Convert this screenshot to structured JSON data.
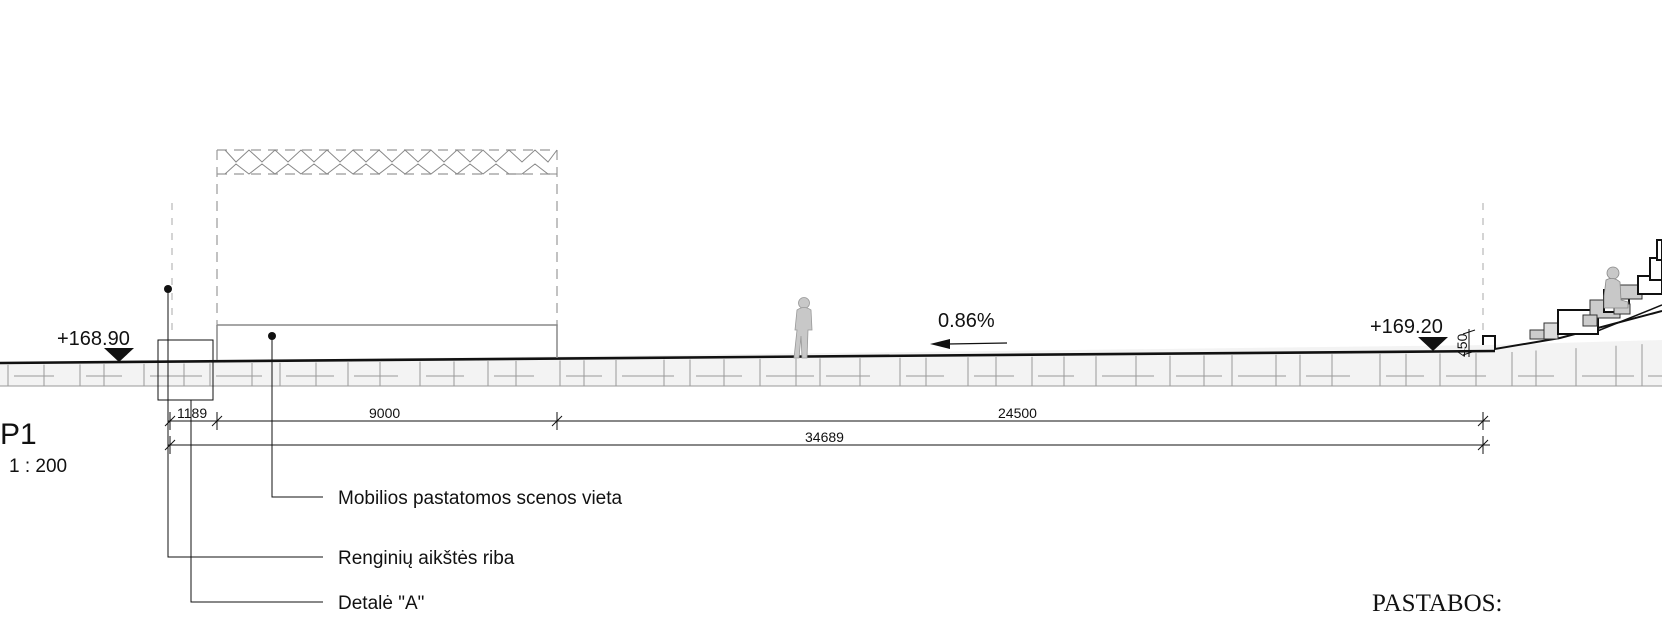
{
  "section": {
    "title": "P1",
    "scale": "1 : 200"
  },
  "elevations": {
    "left": "+168.90",
    "right": "+169.20"
  },
  "slope": {
    "label": "0.86%"
  },
  "dimensions": {
    "d1": "1189",
    "d2": "9000",
    "d3": "24500",
    "total": "34689",
    "step_height": "450"
  },
  "notes": {
    "stage_location": "Mobilios pastatomos scenos vieta",
    "event_area_boundary": "Renginių aikštės riba",
    "detail_a": "Detalė \"A\""
  },
  "pastabos": "PASTABOS:"
}
